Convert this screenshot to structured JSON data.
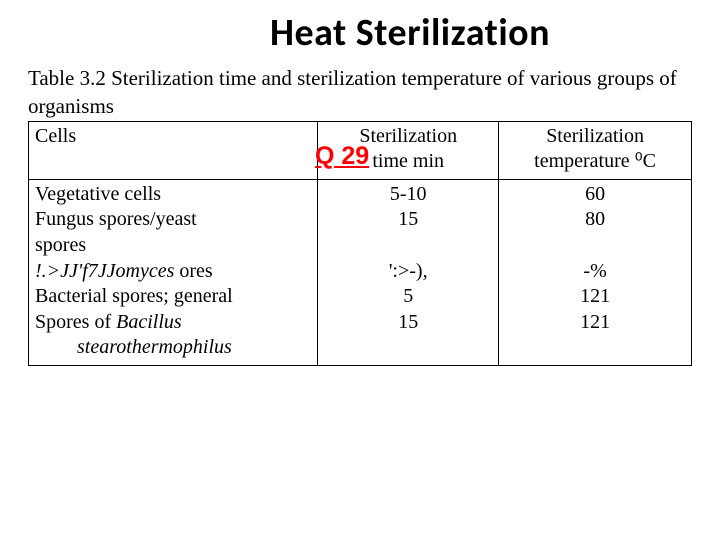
{
  "title": "Heat Sterilization",
  "caption": "Table 3.2 Sterilization time and sterilization temperature of various groups of organisms",
  "qlabel": "Q 29",
  "table": {
    "header": {
      "c1": "Cells",
      "c2a": "Sterilization",
      "c2b": "time min",
      "c3a": "Sterilization",
      "c3b": "temperature ⁰C"
    },
    "rows": {
      "r1c1": "Vegetative cells",
      "r1c2": "5-10",
      "r1c3": "60",
      "r2c1": "Fungus spores/yeast",
      "r2c1b": "spores",
      "r2c2": "15",
      "r2c3": "80",
      "r3c1a": "!.>JJ'f7JJomyces",
      "r3c1b": " ores",
      "r3c2": "':>-),",
      "r3c3": "-%",
      "r4c1": "Bacterial spores; general",
      "r4c2": "5",
      "r4c3": "121",
      "r5c1a": "Spores of ",
      "r5c1b": "Bacillus",
      "r5c2": "15",
      "r5c3": "121",
      "r6c1": "stearothermophilus"
    }
  },
  "colors": {
    "text": "#000000",
    "accent": "#ff0000",
    "background": "#ffffff",
    "border": "#000000"
  },
  "fonts": {
    "title_family": "Calibri",
    "title_size_pt": 28,
    "body_family": "Georgia",
    "body_size_pt": 16
  }
}
